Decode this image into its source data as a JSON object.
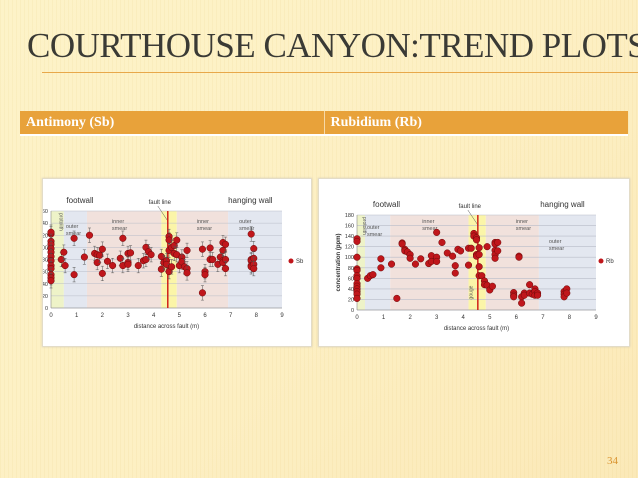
{
  "slide": {
    "title": "COURTHOUSE CANYON:TREND PLOTS",
    "page_number": "34",
    "accent": "#e8a23a"
  },
  "table_header": [
    "Antimony (Sb)",
    "Rubidium (Rb)"
  ],
  "chart_data": [
    {
      "type": "scatter",
      "ylabel": "concentration (ppm)",
      "xlabel": "distance across fault (m)",
      "xlim": [
        0,
        9
      ],
      "ylim": [
        0,
        160
      ],
      "xticks": [
        0,
        1,
        2,
        3,
        4,
        5,
        6,
        7,
        8,
        9
      ],
      "yticks": [
        0,
        20,
        40,
        60,
        80,
        100,
        120,
        140,
        160
      ],
      "grid": true,
      "legend": "right",
      "error_bars": true,
      "marker_color": "#c0161b",
      "zone_labels": {
        "footwall": "footwall",
        "hanging_wall": "hanging wall",
        "fault_line": "fault line",
        "protolith": "protolith",
        "outer_smear": "outer smear",
        "inner_smear": "inner smear",
        "inner_smear_2": "inner smear",
        "outer_smear_2": "outer smear"
      },
      "zones": [
        {
          "from": 0,
          "to": 0.5,
          "kind": "protolith",
          "color": "#eef3c8"
        },
        {
          "from": 0.5,
          "to": 1.4,
          "kind": "outer smear",
          "color": "#e3e7f0"
        },
        {
          "from": 1.4,
          "to": 4.3,
          "kind": "inner smear",
          "color": "#f1e1dc"
        },
        {
          "from": 4.3,
          "to": 4.9,
          "kind": "gouge",
          "color": "#fbf5a8"
        },
        {
          "from": 4.9,
          "to": 6.9,
          "kind": "inner smear",
          "color": "#f1e1dc"
        },
        {
          "from": 6.9,
          "to": 9,
          "kind": "outer smear",
          "color": "#e3e7f0"
        }
      ],
      "fault_x": 4.55,
      "series": [
        {
          "name": "Sb",
          "x": [
            0,
            0,
            0,
            0,
            0,
            0,
            0,
            0,
            0,
            0,
            0,
            0,
            0,
            0.4,
            0.5,
            0.55,
            0.9,
            0.9,
            1.3,
            1.5,
            1.7,
            1.8,
            1.8,
            1.9,
            2.0,
            2.0,
            2.2,
            2.4,
            2.7,
            2.8,
            2.8,
            3.0,
            3.0,
            3.0,
            3.1,
            3.4,
            3.6,
            3.7,
            3.7,
            3.8,
            3.9,
            4.3,
            4.3,
            4.4,
            4.5,
            4.5,
            4.6,
            4.6,
            4.6,
            4.6,
            4.7,
            4.7,
            4.8,
            4.8,
            4.9,
            4.9,
            5.0,
            5.1,
            5.1,
            5.2,
            5.3,
            5.3,
            5.3,
            5.9,
            5.9,
            6.0,
            6.0,
            6.2,
            6.2,
            6.3,
            6.5,
            6.6,
            6.7,
            6.7,
            6.7,
            6.7,
            6.8,
            6.8,
            6.8,
            7.8,
            7.8,
            7.8,
            7.8,
            7.8,
            7.9,
            7.9,
            7.9,
            7.9
          ],
          "y": [
            122,
            125,
            110,
            105,
            98,
            92,
            85,
            78,
            70,
            65,
            55,
            50,
            45,
            80,
            92,
            70,
            115,
            55,
            84,
            120,
            90,
            88,
            75,
            87,
            97,
            57,
            77,
            70,
            82,
            115,
            70,
            90,
            75,
            72,
            91,
            70,
            78,
            100,
            80,
            93,
            88,
            85,
            64,
            75,
            78,
            72,
            118,
            112,
            95,
            60,
            100,
            68,
            103,
            90,
            88,
            112,
            70,
            84,
            76,
            68,
            95,
            65,
            58,
            97,
            25,
            60,
            55,
            99,
            80,
            80,
            72,
            84,
            108,
            95,
            78,
            75,
            105,
            80,
            65,
            122,
            80,
            78,
            70,
            68,
            98,
            82,
            72,
            65
          ]
        }
      ]
    },
    {
      "type": "scatter",
      "ylabel": "concentration (ppm)",
      "xlabel": "distance across fault (m)",
      "xlim": [
        0,
        9
      ],
      "ylim": [
        0,
        180
      ],
      "xticks": [
        0,
        1,
        2,
        3,
        4,
        5,
        6,
        7,
        8,
        9
      ],
      "yticks": [
        0,
        20,
        40,
        60,
        80,
        100,
        120,
        140,
        160,
        180
      ],
      "grid": true,
      "legend": "right",
      "error_bars": false,
      "marker_color": "#c0161b",
      "zone_labels": {
        "footwall": "footwall",
        "hanging_wall": "hanging wall",
        "fault_line": "fault line",
        "protolith": "protolith",
        "outer_smear": "outer smear",
        "inner_smear": "inner smear",
        "gouge": "gouge",
        "inner_smear_2": "inner smear",
        "outer_smear_2": "outer smear"
      },
      "zones": [
        {
          "from": 0,
          "to": 0.3,
          "kind": "protolith",
          "color": "#eef3c8"
        },
        {
          "from": 0.3,
          "to": 1.25,
          "kind": "outer smear",
          "color": "#e3e7f0"
        },
        {
          "from": 1.25,
          "to": 4.2,
          "kind": "inner smear",
          "color": "#f1e1dc"
        },
        {
          "from": 4.2,
          "to": 4.85,
          "kind": "gouge",
          "color": "#fbf5a8"
        },
        {
          "from": 4.85,
          "to": 6.85,
          "kind": "inner smear",
          "color": "#f1e1dc"
        },
        {
          "from": 6.85,
          "to": 9,
          "kind": "outer smear",
          "color": "#e3e7f0"
        }
      ],
      "fault_x": 4.55,
      "series": [
        {
          "name": "Rb",
          "x": [
            0,
            0,
            0,
            0,
            0,
            0,
            0,
            0,
            0,
            0,
            0,
            0,
            0,
            0.4,
            0.5,
            0.6,
            0.9,
            0.9,
            1.3,
            1.5,
            1.7,
            1.7,
            1.8,
            1.8,
            1.9,
            2.0,
            2.0,
            2.2,
            2.4,
            2.7,
            2.8,
            2.8,
            3.0,
            3.0,
            3.0,
            3.2,
            3.4,
            3.6,
            3.7,
            3.7,
            3.8,
            3.9,
            4.2,
            4.2,
            4.3,
            4.4,
            4.4,
            4.5,
            4.5,
            4.5,
            4.5,
            4.6,
            4.6,
            4.6,
            4.6,
            4.7,
            4.8,
            4.8,
            4.9,
            4.9,
            5.0,
            5.1,
            5.2,
            5.2,
            5.2,
            5.2,
            5.2,
            5.3,
            5.3,
            5.9,
            5.9,
            5.9,
            6.1,
            6.1,
            6.2,
            6.2,
            6.3,
            6.3,
            6.5,
            6.5,
            6.6,
            6.7,
            6.7,
            6.7,
            6.8,
            6.8,
            7.8,
            7.8,
            7.8,
            7.9,
            7.9
          ],
          "y": [
            135,
            130,
            100,
            78,
            75,
            65,
            60,
            50,
            45,
            40,
            35,
            30,
            22,
            60,
            65,
            67,
            97,
            80,
            87,
            22,
            127,
            125,
            115,
            112,
            110,
            105,
            98,
            87,
            97,
            88,
            103,
            92,
            147,
            100,
            92,
            128,
            108,
            102,
            84,
            70,
            115,
            112,
            117,
            85,
            117,
            145,
            140,
            137,
            133,
            105,
            102,
            118,
            82,
            65,
            105,
            65,
            55,
            48,
            120,
            47,
            38,
            45,
            128,
            125,
            113,
            105,
            98,
            128,
            112,
            33,
            28,
            25,
            102,
            100,
            25,
            13,
            32,
            28,
            48,
            32,
            30,
            40,
            35,
            28,
            32,
            28,
            35,
            30,
            25,
            40,
            32
          ]
        }
      ]
    }
  ]
}
